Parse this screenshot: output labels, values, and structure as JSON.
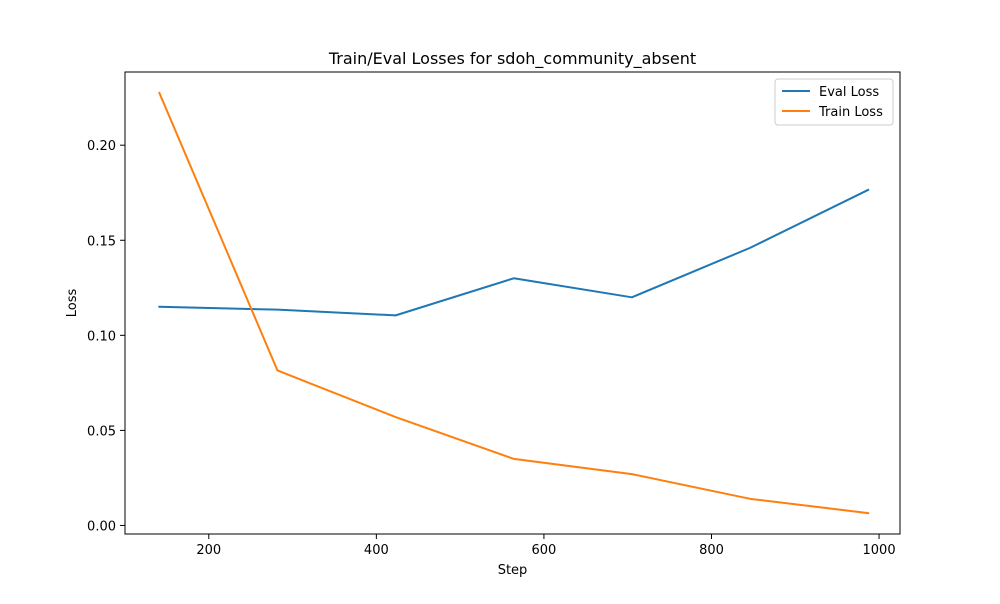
{
  "chart_data": {
    "type": "line",
    "title": "Train/Eval Losses for sdoh_community_absent",
    "xlabel": "Step",
    "ylabel": "Loss",
    "xlim": [
      100,
      1025
    ],
    "ylim": [
      -0.0045,
      0.2385
    ],
    "xticks": [
      200,
      400,
      600,
      800,
      1000
    ],
    "xtick_labels": [
      "200",
      "400",
      "600",
      "800",
      "1000"
    ],
    "yticks": [
      0.0,
      0.05,
      0.1,
      0.15,
      0.2
    ],
    "ytick_labels": [
      "0.00",
      "0.05",
      "0.10",
      "0.15",
      "0.20"
    ],
    "grid": false,
    "legend_position": "top-right",
    "series": [
      {
        "name": "Eval Loss",
        "color": "#1f77b4",
        "x": [
          141,
          282,
          423,
          564,
          705,
          846,
          987
        ],
        "y": [
          0.115,
          0.1135,
          0.1105,
          0.13,
          0.12,
          0.146,
          0.1765
        ]
      },
      {
        "name": "Train Loss",
        "color": "#ff7f0e",
        "x": [
          141,
          282,
          423,
          564,
          705,
          846,
          987
        ],
        "y": [
          0.2275,
          0.0815,
          0.057,
          0.035,
          0.027,
          0.014,
          0.0065
        ]
      }
    ]
  }
}
